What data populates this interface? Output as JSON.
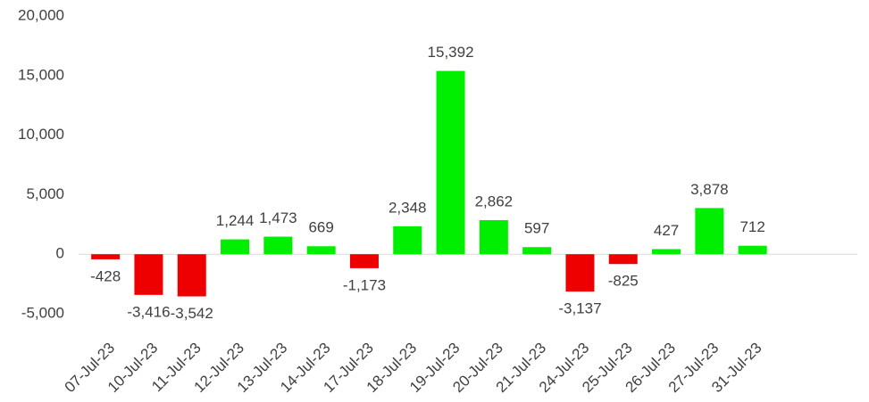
{
  "chart_data": {
    "type": "bar",
    "categories": [
      "07-Jul-23",
      "10-Jul-23",
      "11-Jul-23",
      "12-Jul-23",
      "13-Jul-23",
      "14-Jul-23",
      "17-Jul-23",
      "18-Jul-23",
      "19-Jul-23",
      "20-Jul-23",
      "21-Jul-23",
      "24-Jul-23",
      "25-Jul-23",
      "26-Jul-23",
      "27-Jul-23",
      "31-Jul-23"
    ],
    "values": [
      -428,
      -3416,
      -3542,
      1244,
      1473,
      669,
      -1173,
      2348,
      15392,
      2862,
      597,
      -3137,
      -825,
      427,
      3878,
      712
    ],
    "value_labels": [
      "-428",
      "-3,416",
      "-3,542",
      "1,244",
      "1,473",
      "669",
      "-1,173",
      "2,348",
      "15,392",
      "2,862",
      "597",
      "-3,137",
      "-825",
      "427",
      "3,878",
      "712"
    ],
    "positive_color": "#00ee00",
    "negative_color": "#ee0000",
    "ylim": [
      -5000,
      20000
    ],
    "yticks": [
      {
        "value": -5000,
        "label": "-5,000"
      },
      0,
      {
        "value": 5000,
        "label": "5,000"
      },
      {
        "value": 10000,
        "label": "10,000"
      },
      {
        "value": 15000,
        "label": "15,000"
      },
      {
        "value": 20000,
        "label": "20,000"
      }
    ],
    "grid": false
  }
}
